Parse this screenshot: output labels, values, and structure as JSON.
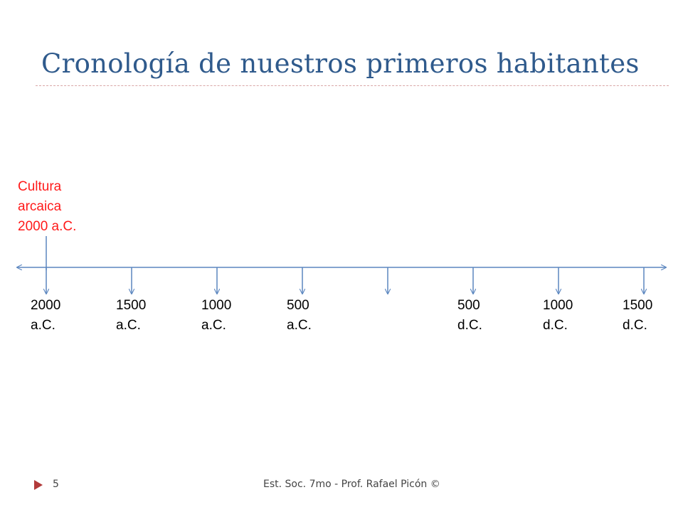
{
  "slide": {
    "title": "Cronología de nuestros primeros habitantes",
    "footer_page": "5",
    "footer_text": "Est. Soc. 7mo - Prof. Rafael Picón ©"
  },
  "callout": {
    "lines": [
      "Cultura",
      "arcaica",
      "2000 a.C."
    ],
    "color": "#ff1a1a"
  },
  "timeline": {
    "line_color": "#5b86bf",
    "ticks": [
      {
        "year": "2000",
        "era": "a.C."
      },
      {
        "year": "1500",
        "era": "a.C."
      },
      {
        "year": "1000",
        "era": "a.C."
      },
      {
        "year": "500",
        "era": "a.C."
      },
      {
        "year": "",
        "era": ""
      },
      {
        "year": "500",
        "era": "d.C."
      },
      {
        "year": "1000",
        "era": "d.C."
      },
      {
        "year": "1500",
        "era": "d.C."
      }
    ]
  },
  "colors": {
    "title": "#2f5a8c",
    "rule": "#d9a6a6",
    "bullet": "#b23a3a"
  }
}
